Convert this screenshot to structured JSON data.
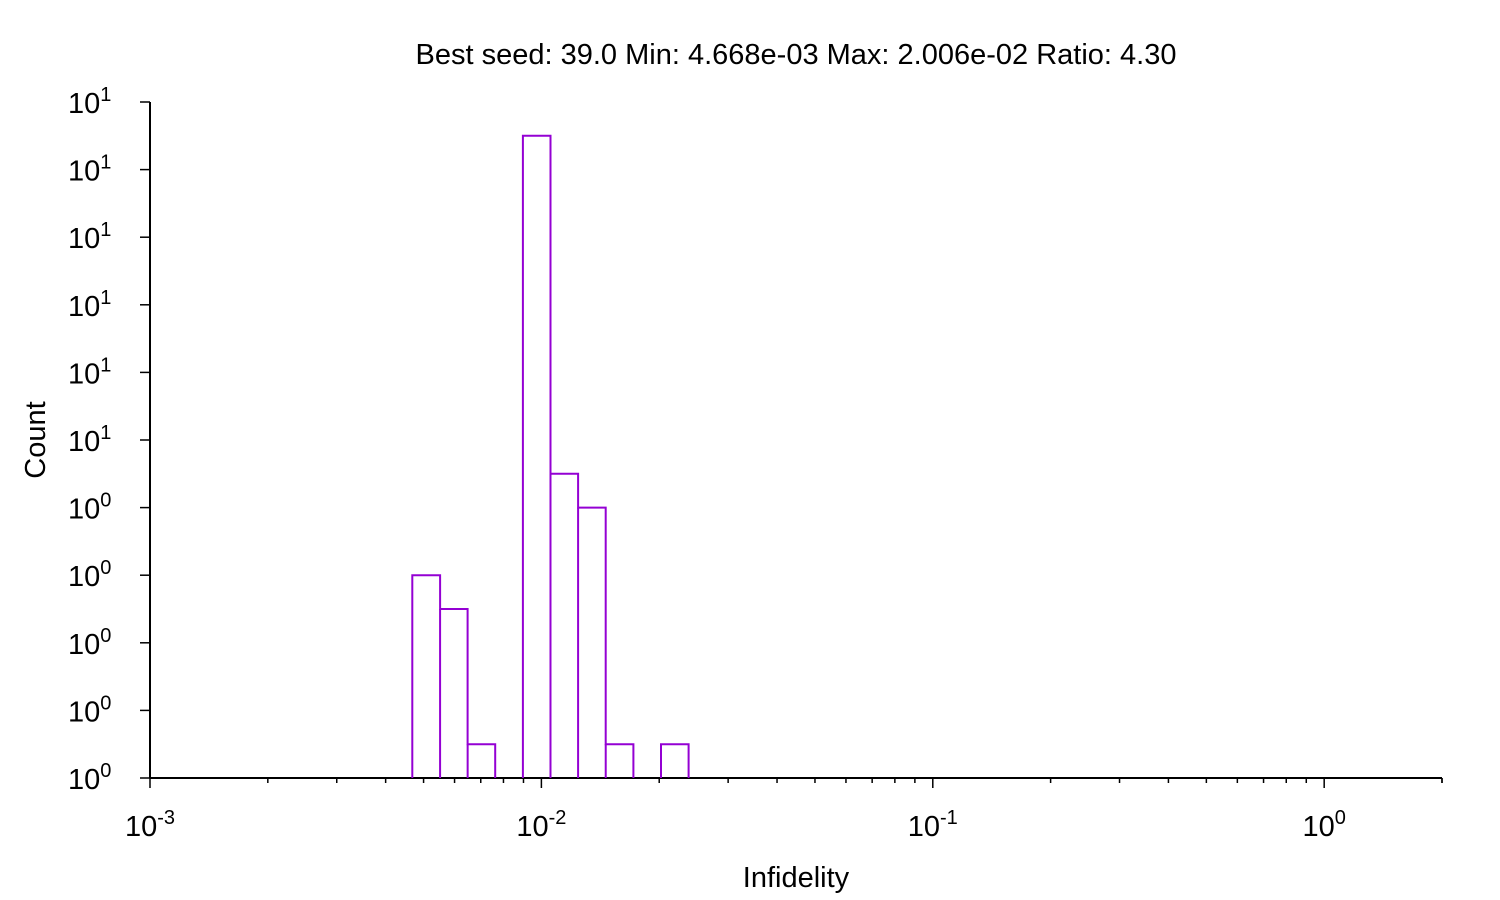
{
  "chart_data": {
    "type": "histogram",
    "title": "Best seed: 39.0 Min: 4.668e-03 Max: 2.006e-02 Ratio: 4.30",
    "xlabel": "Infidelity",
    "ylabel": "Count",
    "x_scale": "log",
    "xlim": [
      0.001,
      2.0
    ],
    "ylim": [
      0,
      10
    ],
    "x_tick_labels": [
      {
        "base": "10",
        "exp": "-3",
        "value": 0.001
      },
      {
        "base": "10",
        "exp": "-2",
        "value": 0.01
      },
      {
        "base": "10",
        "exp": "-1",
        "value": 0.1
      },
      {
        "base": "10",
        "exp": "0",
        "value": 1
      }
    ],
    "y_tick_labels": [
      {
        "base": "10",
        "exp": "0",
        "value": 0
      },
      {
        "base": "10",
        "exp": "0",
        "value": 1
      },
      {
        "base": "10",
        "exp": "0",
        "value": 2
      },
      {
        "base": "10",
        "exp": "0",
        "value": 3
      },
      {
        "base": "10",
        "exp": "0",
        "value": 4
      },
      {
        "base": "10",
        "exp": "1",
        "value": 5
      },
      {
        "base": "10",
        "exp": "1",
        "value": 6
      },
      {
        "base": "10",
        "exp": "1",
        "value": 7
      },
      {
        "base": "10",
        "exp": "1",
        "value": 8
      },
      {
        "base": "10",
        "exp": "1",
        "value": 9
      },
      {
        "base": "10",
        "exp": "1",
        "value": 10
      }
    ],
    "bin_edges": [
      0.00468,
      0.00551,
      0.00648,
      0.00762,
      0.00897,
      0.01055,
      0.01241,
      0.0146,
      0.01718,
      0.02021,
      0.02378
    ],
    "counts": [
      3,
      2.5,
      0.5,
      0,
      9.5,
      4.5,
      4,
      0.5,
      0,
      0.5
    ],
    "colors": {
      "bars": "#9400D3",
      "axes": "#000000"
    },
    "grid": false,
    "legend": "none"
  }
}
